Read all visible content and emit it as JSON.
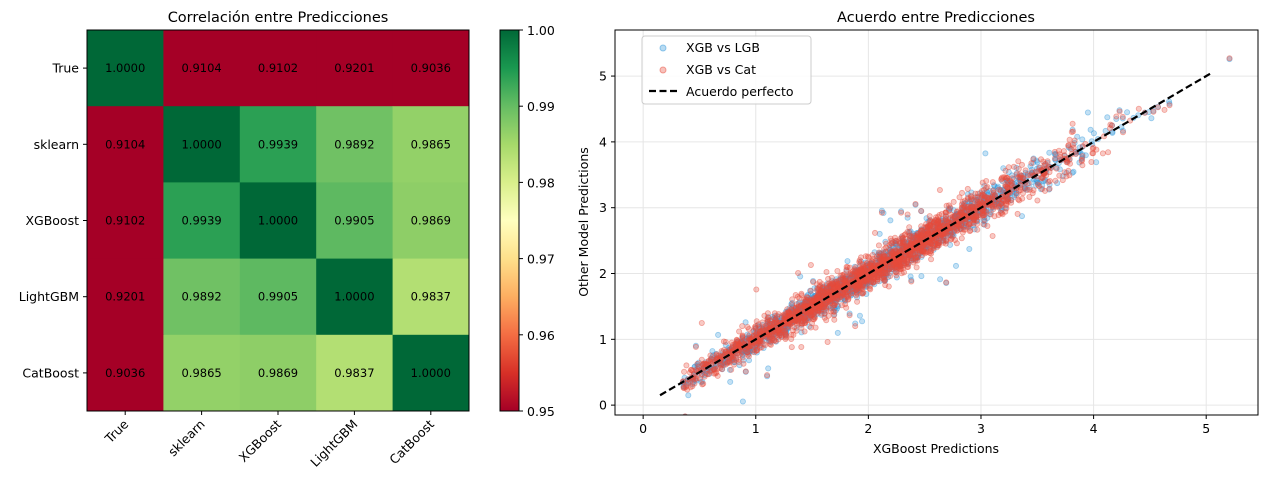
{
  "chart_data": [
    {
      "type": "heatmap",
      "title": "Correlación entre Predicciones",
      "row_labels": [
        "True",
        "sklearn",
        "XGBoost",
        "LightGBM",
        "CatBoost"
      ],
      "col_labels": [
        "True",
        "sklearn",
        "XGBoost",
        "LightGBM",
        "CatBoost"
      ],
      "values": [
        [
          1.0,
          0.9104,
          0.9102,
          0.9201,
          0.9036
        ],
        [
          0.9104,
          1.0,
          0.9939,
          0.9892,
          0.9865
        ],
        [
          0.9102,
          0.9939,
          1.0,
          0.9905,
          0.9869
        ],
        [
          0.9201,
          0.9892,
          0.9905,
          1.0,
          0.9837
        ],
        [
          0.9036,
          0.9865,
          0.9869,
          0.9837,
          1.0
        ]
      ],
      "cell_labels": [
        [
          "1.0000",
          "0.9104",
          "0.9102",
          "0.9201",
          "0.9036"
        ],
        [
          "0.9104",
          "1.0000",
          "0.9939",
          "0.9892",
          "0.9865"
        ],
        [
          "0.9102",
          "0.9939",
          "1.0000",
          "0.9905",
          "0.9869"
        ],
        [
          "0.9201",
          "0.9892",
          "0.9905",
          "1.0000",
          "0.9837"
        ],
        [
          "0.9036",
          "0.9865",
          "0.9869",
          "0.9837",
          "1.0000"
        ]
      ],
      "colormap": "RdYlGn",
      "vmin": 0.95,
      "vmax": 1.0,
      "colorbar_ticks": [
        "0.95",
        "0.96",
        "0.97",
        "0.98",
        "0.99",
        "1.00"
      ]
    },
    {
      "type": "scatter",
      "title": "Acuerdo entre Predicciones",
      "xlabel": "XGBoost Predictions",
      "ylabel": "Other Model Predictions",
      "xlim": [
        -0.25,
        5.46
      ],
      "ylim": [
        -0.15,
        5.7
      ],
      "xticks": [
        "0",
        "1",
        "2",
        "3",
        "4",
        "5"
      ],
      "yticks": [
        "0",
        "1",
        "2",
        "3",
        "4",
        "5"
      ],
      "grid": true,
      "legend_position": "top-left",
      "series": [
        {
          "name": "XGB vs LGB",
          "color": "#3498db",
          "approx_points": 2000,
          "x_range": [
            0.35,
            5.3
          ],
          "noise_sd": 0.12
        },
        {
          "name": "XGB vs Cat",
          "color": "#e74c3c",
          "approx_points": 2000,
          "x_range": [
            0.35,
            5.3
          ],
          "noise_sd": 0.15
        }
      ],
      "reference_line": {
        "name": "Acuerdo perfecto",
        "color": "#000000",
        "x": [
          0.15,
          5.05
        ],
        "y": [
          0.15,
          5.05
        ]
      }
    }
  ]
}
